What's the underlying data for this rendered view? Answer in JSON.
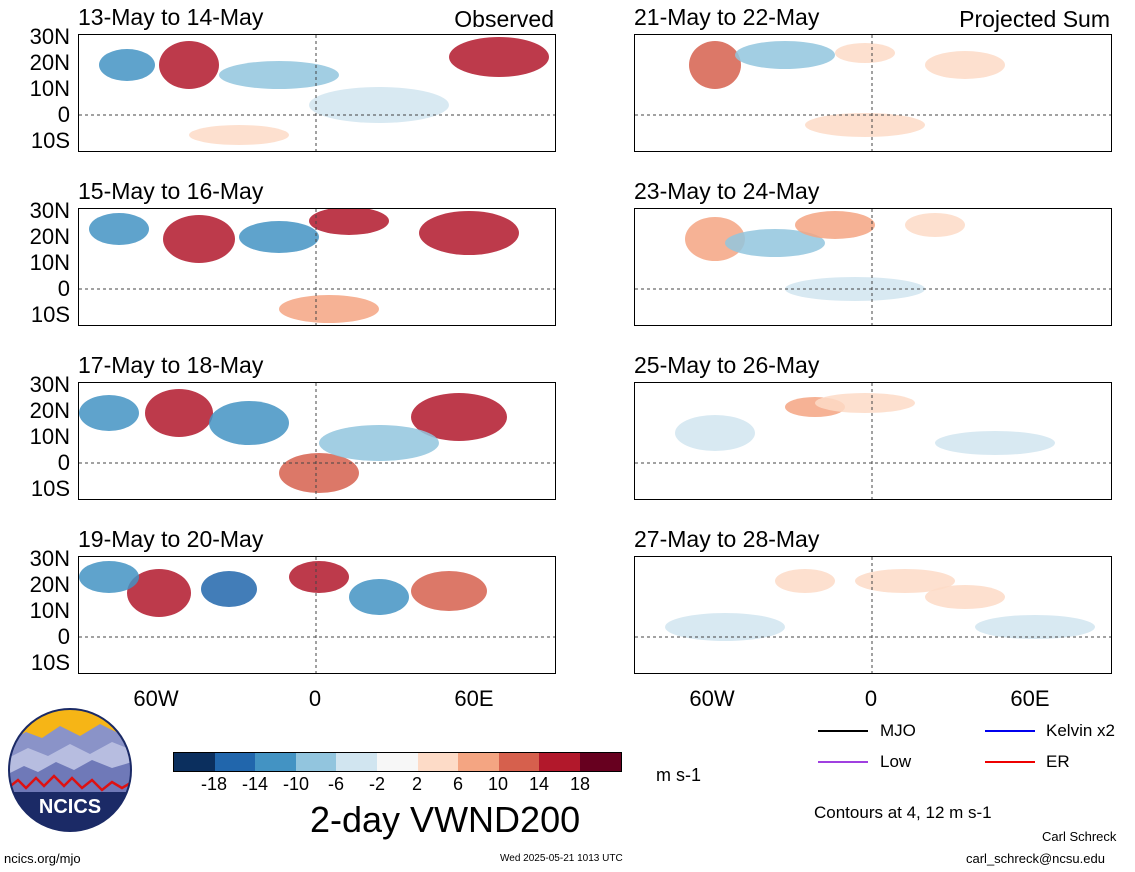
{
  "left_badge": "Observed",
  "right_badge": "Projected Sum",
  "observed_dates": [
    "13-May to 14-May",
    "15-May to 16-May",
    "17-May to 18-May",
    "19-May to 20-May"
  ],
  "projected_dates": [
    "21-May to 22-May",
    "23-May to 24-May",
    "25-May to 26-May",
    "27-May to 28-May"
  ],
  "lat_labels": [
    "30N",
    "20N",
    "10N",
    "0",
    "10S"
  ],
  "lon_labels": [
    "60W",
    "0",
    "60E"
  ],
  "colorbar": {
    "ticks": [
      "-18",
      "-14",
      "-10",
      "-6",
      "-2",
      "2",
      "6",
      "10",
      "14",
      "18"
    ],
    "colors": [
      "#0b2f5e",
      "#2166ac",
      "#4393c3",
      "#92c5de",
      "#d1e5f0",
      "#f7f7f7",
      "#fddbc7",
      "#f4a582",
      "#d6604d",
      "#b2182b",
      "#67001f"
    ],
    "units": "m s-1"
  },
  "title": "2-day VWND200",
  "legend": {
    "items": [
      {
        "label": "MJO",
        "color": "#000000"
      },
      {
        "label": "Kelvin x2",
        "color": "#0000ee"
      },
      {
        "label": "Low",
        "color": "#a040e0"
      },
      {
        "label": "ER",
        "color": "#ee0000"
      }
    ],
    "contours_note": "Contours at 4, 12 m s-1"
  },
  "logo": {
    "text": "NCICS"
  },
  "footer": {
    "url": "ncics.org/mjo",
    "timestamp": "Wed 2025-05-21 1013 UTC",
    "author": "Carl Schreck",
    "email": "carl_schreck@ncsu.edu"
  }
}
